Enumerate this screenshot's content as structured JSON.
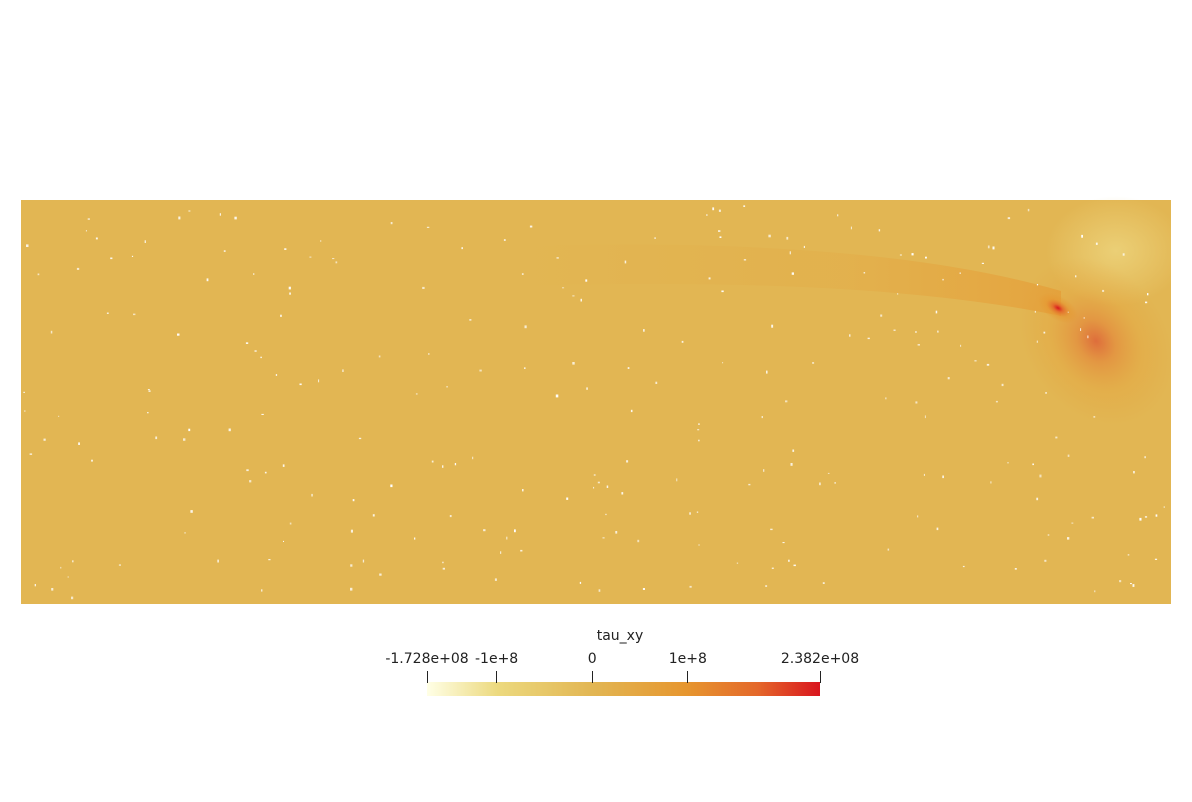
{
  "field": {
    "variable": "tau_xy",
    "colormap": [
      "#ffffe6",
      "#ecd97e",
      "#e2b653",
      "#e6962f",
      "#e4682a",
      "#d9151e"
    ],
    "base_color": "#e2b653",
    "hot_color": "#d9151e"
  },
  "colorbar": {
    "title": "tau_xy",
    "min": -172800000,
    "max": 238200000,
    "ticks": [
      {
        "value": -172800000,
        "label": "-1.728e+08"
      },
      {
        "value": -100000000,
        "label": "-1e+8"
      },
      {
        "value": 0,
        "label": "0"
      },
      {
        "value": 100000000,
        "label": "1e+8"
      },
      {
        "value": 238200000,
        "label": "2.382e+08"
      }
    ]
  }
}
